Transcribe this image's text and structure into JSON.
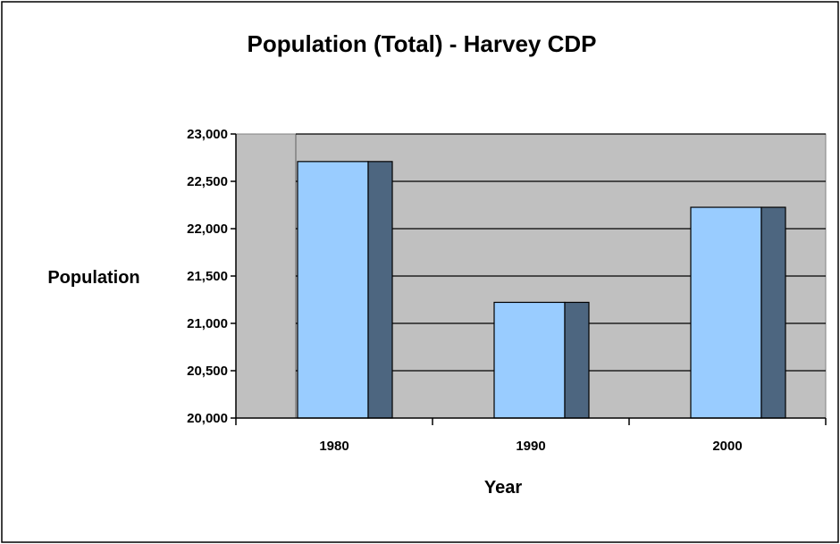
{
  "chart_data": {
    "type": "bar",
    "title": "Population (Total) - Harvey CDP",
    "xlabel": "Year",
    "ylabel": "Population",
    "categories": [
      "1980",
      "1990",
      "2000"
    ],
    "values": [
      22709,
      21222,
      22226
    ],
    "ylim": [
      20000,
      23000
    ],
    "yticks": [
      20000,
      20500,
      21000,
      21500,
      22000,
      22500,
      23000
    ],
    "ytick_labels": [
      "20,000",
      "20,500",
      "21,000",
      "21,500",
      "22,000",
      "22,500",
      "23,000"
    ],
    "grid": true,
    "legend": false,
    "style": "3d-bar",
    "colors": {
      "bar_front": "#99ccff",
      "bar_side": "#4d6680",
      "plot_background": "#c0c0c0",
      "gridline": "#000000"
    }
  }
}
